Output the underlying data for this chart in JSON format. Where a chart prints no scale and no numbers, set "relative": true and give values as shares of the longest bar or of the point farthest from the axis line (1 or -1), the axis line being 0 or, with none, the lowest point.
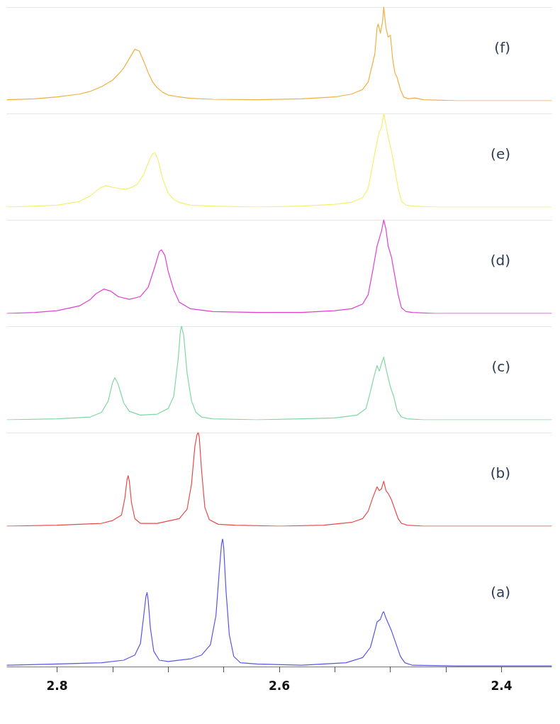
{
  "chart_data": [
    {
      "type": "line",
      "relative": true,
      "xlim": [
        2.845,
        2.355
      ],
      "tick_labels": false,
      "marker": "none",
      "line_style": "solid",
      "legend": false,
      "series": [
        {
          "name": "(f)",
          "color": "#f0b040",
          "x": [
            2.845,
            2.82,
            2.8,
            2.78,
            2.77,
            2.76,
            2.75,
            2.745,
            2.74,
            2.735,
            2.73,
            2.726,
            2.722,
            2.718,
            2.714,
            2.71,
            2.705,
            2.7,
            2.69,
            2.68,
            2.66,
            2.62,
            2.58,
            2.55,
            2.535,
            2.525,
            2.52,
            2.517,
            2.514,
            2.512,
            2.511,
            2.509,
            2.507,
            2.506,
            2.504,
            2.502,
            2.5,
            2.498,
            2.496,
            2.494,
            2.491,
            2.488,
            2.484,
            2.478,
            2.47,
            2.44,
            2.4,
            2.355
          ],
          "values": [
            0.01,
            0.02,
            0.04,
            0.07,
            0.1,
            0.15,
            0.22,
            0.28,
            0.35,
            0.45,
            0.55,
            0.53,
            0.42,
            0.3,
            0.2,
            0.14,
            0.09,
            0.06,
            0.04,
            0.025,
            0.015,
            0.01,
            0.02,
            0.04,
            0.07,
            0.12,
            0.2,
            0.35,
            0.5,
            0.78,
            0.82,
            0.72,
            0.85,
            1.0,
            0.78,
            0.68,
            0.7,
            0.45,
            0.3,
            0.25,
            0.12,
            0.04,
            0.02,
            0.03,
            0.01,
            0.0,
            0.0,
            0.0
          ]
        }
      ]
    },
    {
      "type": "line",
      "relative": true,
      "xlim": [
        2.845,
        2.355
      ],
      "tick_labels": false,
      "marker": "none",
      "line_style": "solid",
      "legend": false,
      "series": [
        {
          "name": "(e)",
          "color": "#f5f070",
          "x": [
            2.845,
            2.82,
            2.8,
            2.78,
            2.77,
            2.762,
            2.756,
            2.75,
            2.74,
            2.735,
            2.728,
            2.722,
            2.717,
            2.714,
            2.712,
            2.709,
            2.705,
            2.7,
            2.695,
            2.69,
            2.68,
            2.66,
            2.62,
            2.58,
            2.55,
            2.535,
            2.525,
            2.52,
            2.516,
            2.512,
            2.51,
            2.508,
            2.506,
            2.504,
            2.502,
            2.499,
            2.496,
            2.493,
            2.49,
            2.486,
            2.48,
            2.46,
            2.42,
            2.355
          ],
          "values": [
            0.0,
            0.01,
            0.02,
            0.06,
            0.12,
            0.2,
            0.23,
            0.21,
            0.19,
            0.2,
            0.24,
            0.35,
            0.5,
            0.57,
            0.58,
            0.5,
            0.3,
            0.15,
            0.08,
            0.05,
            0.02,
            0.01,
            0.0,
            0.01,
            0.03,
            0.05,
            0.1,
            0.2,
            0.45,
            0.7,
            0.8,
            0.85,
            1.0,
            0.88,
            0.75,
            0.6,
            0.4,
            0.2,
            0.06,
            0.02,
            0.01,
            0.0,
            0.0,
            0.0
          ]
        }
      ]
    },
    {
      "type": "line",
      "relative": true,
      "xlim": [
        2.845,
        2.355
      ],
      "tick_labels": false,
      "marker": "none",
      "line_style": "solid",
      "legend": false,
      "series": [
        {
          "name": "(d)",
          "color": "#e040d0",
          "x": [
            2.845,
            2.82,
            2.8,
            2.78,
            2.77,
            2.765,
            2.758,
            2.752,
            2.745,
            2.735,
            2.725,
            2.718,
            2.712,
            2.708,
            2.706,
            2.703,
            2.7,
            2.695,
            2.69,
            2.68,
            2.66,
            2.62,
            2.58,
            2.55,
            2.535,
            2.525,
            2.52,
            2.516,
            2.512,
            2.51,
            2.508,
            2.506,
            2.504,
            2.502,
            2.499,
            2.496,
            2.493,
            2.49,
            2.486,
            2.48,
            2.46,
            2.42,
            2.355
          ],
          "values": [
            0.0,
            0.01,
            0.03,
            0.08,
            0.15,
            0.21,
            0.26,
            0.24,
            0.18,
            0.15,
            0.18,
            0.28,
            0.5,
            0.66,
            0.68,
            0.62,
            0.45,
            0.25,
            0.12,
            0.05,
            0.02,
            0.01,
            0.01,
            0.03,
            0.05,
            0.1,
            0.2,
            0.45,
            0.72,
            0.8,
            0.88,
            1.0,
            0.9,
            0.72,
            0.6,
            0.4,
            0.2,
            0.06,
            0.02,
            0.01,
            0.0,
            0.0,
            0.0
          ]
        }
      ]
    },
    {
      "type": "line",
      "relative": true,
      "xlim": [
        2.845,
        2.355
      ],
      "tick_labels": false,
      "marker": "none",
      "line_style": "solid",
      "legend": false,
      "series": [
        {
          "name": "(c)",
          "color": "#80d8a0",
          "x": [
            2.845,
            2.8,
            2.77,
            2.76,
            2.754,
            2.75,
            2.748,
            2.745,
            2.74,
            2.735,
            2.725,
            2.71,
            2.7,
            2.695,
            2.691,
            2.689,
            2.688,
            2.686,
            2.683,
            2.679,
            2.675,
            2.67,
            2.66,
            2.62,
            2.58,
            2.55,
            2.53,
            2.522,
            2.518,
            2.515,
            2.512,
            2.51,
            2.508,
            2.506,
            2.504,
            2.502,
            2.5,
            2.497,
            2.494,
            2.49,
            2.485,
            2.47,
            2.42,
            2.355
          ],
          "values": [
            0.0,
            0.01,
            0.03,
            0.08,
            0.2,
            0.4,
            0.45,
            0.38,
            0.18,
            0.09,
            0.05,
            0.06,
            0.12,
            0.25,
            0.65,
            0.95,
            1.0,
            0.9,
            0.5,
            0.2,
            0.08,
            0.03,
            0.01,
            0.0,
            0.01,
            0.02,
            0.05,
            0.12,
            0.3,
            0.45,
            0.58,
            0.52,
            0.6,
            0.67,
            0.55,
            0.45,
            0.35,
            0.25,
            0.1,
            0.03,
            0.01,
            0.0,
            0.0,
            0.0
          ]
        }
      ]
    },
    {
      "type": "line",
      "relative": true,
      "xlim": [
        2.845,
        2.355
      ],
      "tick_labels": false,
      "marker": "none",
      "line_style": "solid",
      "legend": false,
      "series": [
        {
          "name": "(b)",
          "color": "#e64a4a",
          "x": [
            2.845,
            2.8,
            2.76,
            2.75,
            2.742,
            2.739,
            2.737,
            2.736,
            2.735,
            2.733,
            2.73,
            2.725,
            2.71,
            2.69,
            2.683,
            2.679,
            2.676,
            2.674,
            2.673,
            2.672,
            2.67,
            2.667,
            2.663,
            2.655,
            2.64,
            2.6,
            2.56,
            2.535,
            2.525,
            2.52,
            2.516,
            2.512,
            2.51,
            2.508,
            2.506,
            2.504,
            2.502,
            2.499,
            2.496,
            2.493,
            2.49,
            2.485,
            2.47,
            2.42,
            2.355
          ],
          "values": [
            0.0,
            0.01,
            0.03,
            0.06,
            0.12,
            0.3,
            0.5,
            0.54,
            0.48,
            0.25,
            0.08,
            0.03,
            0.03,
            0.08,
            0.18,
            0.45,
            0.85,
            0.98,
            1.0,
            0.95,
            0.6,
            0.2,
            0.07,
            0.02,
            0.01,
            0.0,
            0.01,
            0.04,
            0.08,
            0.16,
            0.3,
            0.42,
            0.38,
            0.4,
            0.48,
            0.38,
            0.35,
            0.28,
            0.18,
            0.08,
            0.03,
            0.01,
            0.0,
            0.0,
            0.0
          ]
        }
      ]
    },
    {
      "type": "line",
      "relative": true,
      "xlim": [
        2.845,
        2.355
      ],
      "xticks": [
        2.8,
        {
          "value": 2.75,
          "label": null
        },
        {
          "value": 2.7,
          "label": null
        },
        {
          "value": 2.65,
          "label": null
        },
        2.6,
        {
          "value": 2.55,
          "label": null
        },
        {
          "value": 2.5,
          "label": null
        },
        {
          "value": 2.45,
          "label": null
        },
        2.4
      ],
      "tick_labels": "x",
      "marker": "none",
      "line_style": "solid",
      "legend": false,
      "series": [
        {
          "name": "(a)",
          "color": "#5555e6",
          "x": [
            2.845,
            2.8,
            2.76,
            2.74,
            2.73,
            2.725,
            2.722,
            2.72,
            2.719,
            2.718,
            2.716,
            2.713,
            2.708,
            2.7,
            2.68,
            2.67,
            2.662,
            2.657,
            2.654,
            2.652,
            2.651,
            2.65,
            2.648,
            2.645,
            2.641,
            2.635,
            2.62,
            2.58,
            2.54,
            2.525,
            2.518,
            2.514,
            2.512,
            2.509,
            2.507,
            2.506,
            2.504,
            2.502,
            2.499,
            2.495,
            2.491,
            2.487,
            2.48,
            2.44,
            2.4,
            2.355
          ],
          "values": [
            0.01,
            0.02,
            0.03,
            0.05,
            0.09,
            0.18,
            0.4,
            0.55,
            0.58,
            0.52,
            0.3,
            0.12,
            0.05,
            0.04,
            0.06,
            0.09,
            0.17,
            0.4,
            0.75,
            0.96,
            1.0,
            0.93,
            0.6,
            0.25,
            0.08,
            0.03,
            0.02,
            0.01,
            0.03,
            0.07,
            0.15,
            0.28,
            0.35,
            0.37,
            0.42,
            0.43,
            0.38,
            0.34,
            0.28,
            0.18,
            0.08,
            0.03,
            0.01,
            0.005,
            0.005,
            0.005
          ]
        }
      ]
    }
  ]
}
